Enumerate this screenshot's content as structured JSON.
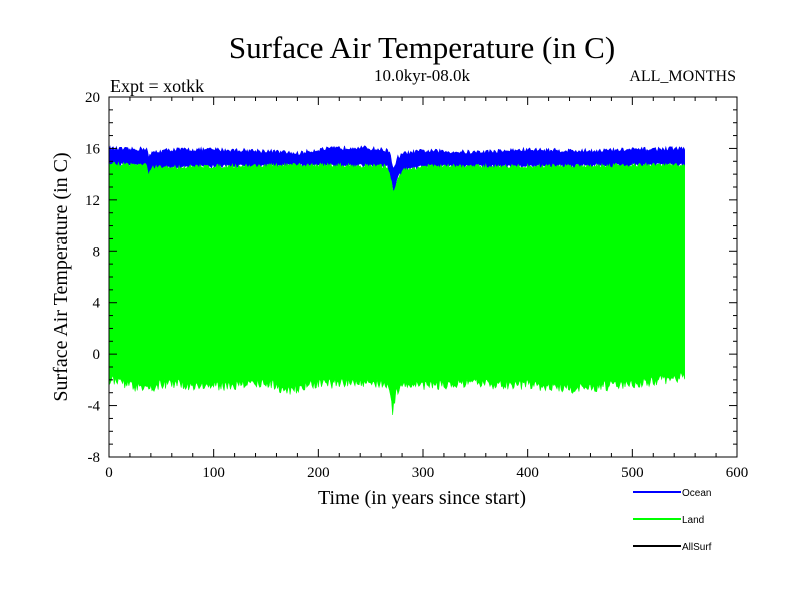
{
  "chart_data": {
    "type": "area",
    "title": "Surface Air Temperature (in C)",
    "experiment_label": "Expt = xotkk",
    "period_label": "10.0kyr-08.0k",
    "months_label": "ALL_MONTHS",
    "xlabel": "Time (in years since start)",
    "ylabel": "Surface Air Temperature (in C)",
    "xlim": [
      0,
      600
    ],
    "ylim": [
      -8,
      20
    ],
    "xticks": [
      0,
      100,
      200,
      300,
      400,
      500,
      600
    ],
    "yticks": [
      -8,
      -4,
      0,
      4,
      8,
      12,
      16,
      20
    ],
    "x_minor_step": 20,
    "y_minor_step": 1,
    "grid": false,
    "legend_position": "bottom-right",
    "series": [
      {
        "name": "Ocean",
        "color": "#0000ff",
        "x_range": [
          0,
          550
        ],
        "upper": [
          [
            0,
            16.0
          ],
          [
            20,
            15.9
          ],
          [
            36,
            16.0
          ],
          [
            38,
            15.3
          ],
          [
            42,
            15.7
          ],
          [
            60,
            15.9
          ],
          [
            100,
            15.9
          ],
          [
            150,
            15.8
          ],
          [
            180,
            15.6
          ],
          [
            200,
            15.9
          ],
          [
            236,
            16.1
          ],
          [
            260,
            15.9
          ],
          [
            268,
            15.8
          ],
          [
            272,
            14.3
          ],
          [
            276,
            15.3
          ],
          [
            282,
            15.6
          ],
          [
            300,
            15.8
          ],
          [
            350,
            15.7
          ],
          [
            400,
            15.9
          ],
          [
            450,
            15.8
          ],
          [
            500,
            15.9
          ],
          [
            550,
            16.0
          ]
        ],
        "lower": [
          [
            0,
            14.8
          ],
          [
            36,
            14.7
          ],
          [
            38,
            14.0
          ],
          [
            42,
            14.5
          ],
          [
            100,
            14.6
          ],
          [
            200,
            14.7
          ],
          [
            266,
            14.6
          ],
          [
            270,
            13.4
          ],
          [
            272,
            12.5
          ],
          [
            276,
            13.8
          ],
          [
            282,
            14.3
          ],
          [
            300,
            14.6
          ],
          [
            400,
            14.6
          ],
          [
            500,
            14.7
          ],
          [
            550,
            14.7
          ]
        ]
      },
      {
        "name": "Land",
        "color": "#00ff00",
        "x_range": [
          0,
          550
        ],
        "upper": [
          [
            0,
            14.8
          ],
          [
            36,
            14.7
          ],
          [
            38,
            14.0
          ],
          [
            42,
            14.5
          ],
          [
            100,
            14.6
          ],
          [
            200,
            14.7
          ],
          [
            266,
            14.6
          ],
          [
            270,
            13.4
          ],
          [
            272,
            12.5
          ],
          [
            276,
            13.8
          ],
          [
            282,
            14.3
          ],
          [
            300,
            14.6
          ],
          [
            400,
            14.6
          ],
          [
            500,
            14.7
          ],
          [
            550,
            14.7
          ]
        ],
        "lower": [
          [
            0,
            -2.0
          ],
          [
            20,
            -2.4
          ],
          [
            36,
            -2.8
          ],
          [
            50,
            -2.3
          ],
          [
            100,
            -2.5
          ],
          [
            150,
            -2.2
          ],
          [
            170,
            -2.8
          ],
          [
            200,
            -2.3
          ],
          [
            250,
            -2.2
          ],
          [
            266,
            -2.3
          ],
          [
            269,
            -3.6
          ],
          [
            271,
            -4.4
          ],
          [
            274,
            -3.0
          ],
          [
            280,
            -2.3
          ],
          [
            300,
            -2.4
          ],
          [
            350,
            -2.3
          ],
          [
            400,
            -2.4
          ],
          [
            450,
            -2.7
          ],
          [
            500,
            -2.3
          ],
          [
            550,
            -1.8
          ]
        ]
      },
      {
        "name": "AllSurf",
        "color": "#000000",
        "x_range": [
          0,
          550
        ],
        "upper": [],
        "lower": []
      }
    ]
  }
}
